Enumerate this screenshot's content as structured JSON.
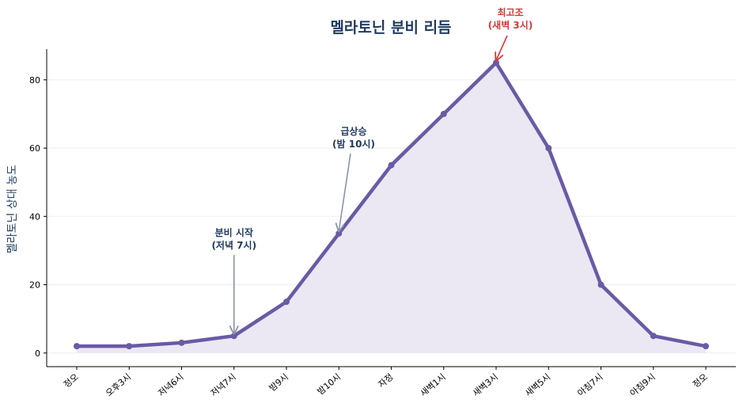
{
  "chart_data": {
    "type": "line",
    "title": "멜라토닌 분비 리듬",
    "xlabel": "",
    "ylabel": "멜라토닌 상대 농도",
    "categories": [
      "정오",
      "오후3시",
      "저녁6시",
      "저녁7시",
      "밤9시",
      "밤10시",
      "자정",
      "새벽1시",
      "새벽3시",
      "새벽5시",
      "아침7시",
      "아침9시",
      "정오"
    ],
    "values": [
      2,
      2,
      3,
      5,
      15,
      35,
      55,
      70,
      85,
      60,
      20,
      5,
      2
    ],
    "ylim": [
      -4,
      89
    ],
    "yticks": [
      0,
      20,
      40,
      60,
      80
    ],
    "grid": "horizontal",
    "colors": {
      "line": "#6a5aa5",
      "fill": "#ebe8f4",
      "accent": "#1f3a5f",
      "peak": "#d93838",
      "arrow": "#8a94a8"
    },
    "annotations": [
      {
        "index": 3,
        "lines": [
          "분비 시작",
          "(저녁 7시)"
        ],
        "color": "#1f3a5f"
      },
      {
        "index": 5,
        "lines": [
          "급상승",
          "(밤 10시)"
        ],
        "color": "#1f3a5f"
      },
      {
        "index": 8,
        "lines": [
          "최고조",
          "(새벽 3시)"
        ],
        "color": "#d93838"
      }
    ]
  }
}
